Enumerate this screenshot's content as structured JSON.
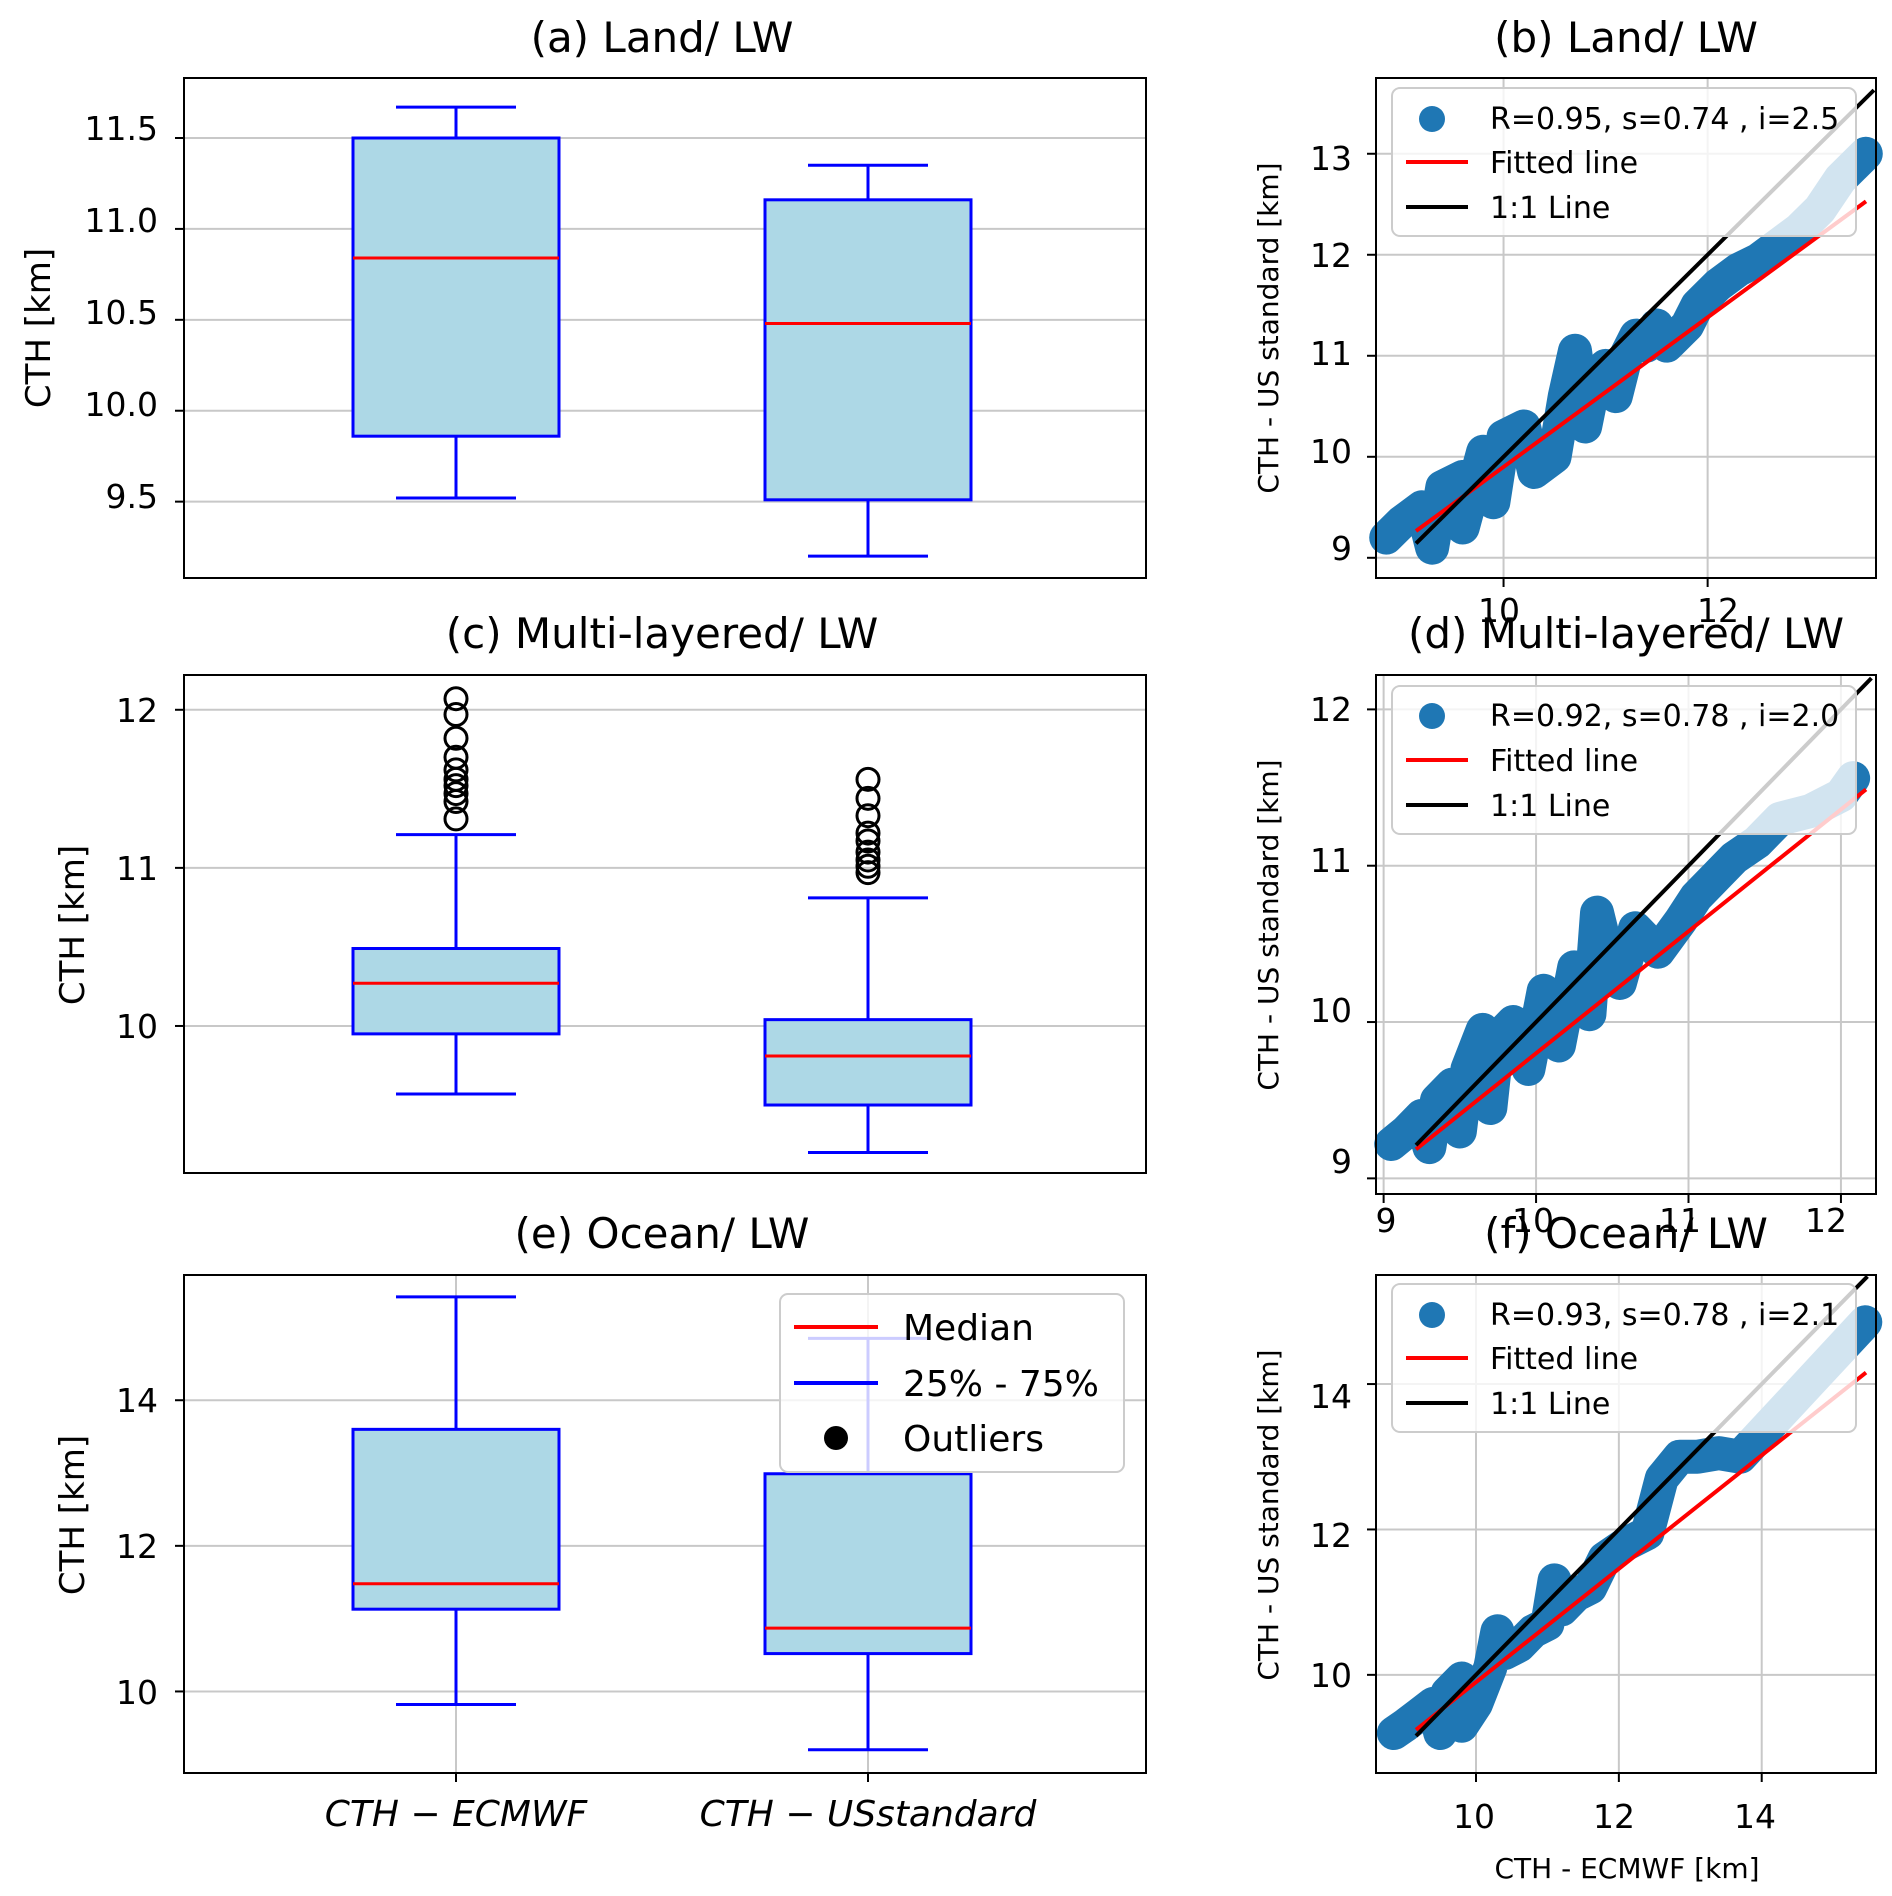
{
  "colors": {
    "box_face": "#add8e6",
    "box_edge": "#0000ff",
    "median": "#ff0000",
    "scatter": "#1f77b4",
    "fit": "#ff0000",
    "identity": "#000000",
    "grid": "#c8c8c8"
  },
  "chart_data": [
    {
      "id": "a",
      "type": "box",
      "title": "(a) Land/ LW",
      "ylabel": "CTH [km]",
      "ylim": [
        9.08,
        11.83
      ],
      "yticks": [
        9.5,
        10.0,
        10.5,
        11.0,
        11.5
      ],
      "ytick_labels": [
        "9.5",
        "10.0",
        "10.5",
        "11.0",
        "11.5"
      ],
      "categories": [
        "CTH - ECMWF",
        "CTH - USstandard"
      ],
      "boxes": [
        {
          "whislo": 9.52,
          "q1": 9.86,
          "med": 10.84,
          "q3": 11.5,
          "whishi": 11.67,
          "fliers": []
        },
        {
          "whislo": 9.2,
          "q1": 9.51,
          "med": 10.48,
          "q3": 11.16,
          "whishi": 11.35,
          "fliers": []
        }
      ]
    },
    {
      "id": "b",
      "type": "scatter",
      "title": "(b) Land/ LW",
      "ylabel": "CTH - US standard [km]",
      "xlim": [
        8.75,
        13.65
      ],
      "ylim": [
        8.8,
        13.75
      ],
      "xticks": [
        10,
        12
      ],
      "xtick_labels": [
        "10",
        "12"
      ],
      "yticks": [
        9,
        10,
        11,
        12,
        13
      ],
      "ytick_labels": [
        "9",
        "10",
        "11",
        "12",
        "13"
      ],
      "legend": [
        "R=0.95, s=0.74 , i=2.5",
        "Fitted line",
        "1:1 Line"
      ],
      "slope": 0.74,
      "intercept": 2.5,
      "points": [
        [
          8.85,
          9.2
        ],
        [
          9.0,
          9.35
        ],
        [
          9.2,
          9.5
        ],
        [
          9.4,
          9.7
        ],
        [
          9.6,
          9.8
        ],
        [
          9.8,
          10.05
        ],
        [
          9.3,
          9.1
        ],
        [
          9.6,
          9.3
        ],
        [
          9.9,
          9.55
        ],
        [
          10.0,
          10.2
        ],
        [
          10.2,
          10.3
        ],
        [
          10.3,
          9.85
        ],
        [
          10.5,
          10.0
        ],
        [
          10.6,
          10.6
        ],
        [
          10.8,
          10.3
        ],
        [
          10.9,
          10.8
        ],
        [
          11.0,
          10.9
        ],
        [
          11.1,
          10.6
        ],
        [
          11.2,
          11.0
        ],
        [
          11.4,
          11.1
        ],
        [
          11.5,
          11.3
        ],
        [
          11.6,
          11.1
        ],
        [
          11.8,
          11.3
        ],
        [
          11.9,
          11.5
        ],
        [
          12.1,
          11.7
        ],
        [
          12.3,
          11.85
        ],
        [
          12.5,
          11.95
        ],
        [
          12.7,
          12.1
        ],
        [
          12.9,
          12.25
        ],
        [
          13.1,
          12.45
        ],
        [
          13.3,
          12.75
        ],
        [
          13.55,
          13.0
        ],
        [
          10.7,
          11.05
        ],
        [
          11.3,
          11.2
        ]
      ]
    },
    {
      "id": "c",
      "type": "box",
      "title": "(c) Multi-layered/ LW",
      "ylabel": "CTH [km]",
      "ylim": [
        9.07,
        12.22
      ],
      "yticks": [
        10,
        11,
        12
      ],
      "ytick_labels": [
        "10",
        "11",
        "12"
      ],
      "categories": [
        "CTH - ECMWF",
        "CTH - USstandard"
      ],
      "boxes": [
        {
          "whislo": 9.57,
          "q1": 9.95,
          "med": 10.27,
          "q3": 10.49,
          "whishi": 11.21,
          "fliers": [
            11.31,
            11.42,
            11.47,
            11.52,
            11.56,
            11.62,
            11.7,
            11.82,
            11.97,
            12.07
          ]
        },
        {
          "whislo": 9.2,
          "q1": 9.5,
          "med": 9.81,
          "q3": 10.04,
          "whishi": 10.81,
          "fliers": [
            10.97,
            11.01,
            11.05,
            11.1,
            11.17,
            11.22,
            11.33,
            11.44,
            11.56
          ]
        }
      ]
    },
    {
      "id": "d",
      "type": "scatter",
      "title": "(d) Multi-layered/ LW",
      "ylabel": "CTH - US standard [km]",
      "xlim": [
        8.95,
        12.23
      ],
      "ylim": [
        8.9,
        12.22
      ],
      "xticks": [
        9,
        10,
        11,
        12
      ],
      "xtick_labels": [
        "9",
        "10",
        "11",
        "12"
      ],
      "yticks": [
        9,
        10,
        11,
        12
      ],
      "ytick_labels": [
        "9",
        "10",
        "11",
        "12"
      ],
      "legend": [
        "R=0.92, s=0.78 , i=2.0",
        "Fitted line",
        "1:1 Line"
      ],
      "slope": 0.78,
      "intercept": 2.0,
      "points": [
        [
          9.05,
          9.22
        ],
        [
          9.15,
          9.3
        ],
        [
          9.25,
          9.4
        ],
        [
          9.35,
          9.5
        ],
        [
          9.45,
          9.6
        ],
        [
          9.55,
          9.7
        ],
        [
          9.3,
          9.2
        ],
        [
          9.5,
          9.3
        ],
        [
          9.7,
          9.45
        ],
        [
          9.75,
          9.9
        ],
        [
          9.85,
          10.0
        ],
        [
          9.95,
          9.7
        ],
        [
          10.05,
          10.2
        ],
        [
          10.15,
          9.85
        ],
        [
          10.25,
          10.35
        ],
        [
          10.35,
          10.05
        ],
        [
          10.45,
          10.5
        ],
        [
          10.55,
          10.25
        ],
        [
          10.65,
          10.6
        ],
        [
          10.8,
          10.45
        ],
        [
          10.95,
          10.65
        ],
        [
          11.05,
          10.8
        ],
        [
          11.15,
          10.9
        ],
        [
          11.3,
          11.05
        ],
        [
          11.45,
          11.15
        ],
        [
          11.6,
          11.3
        ],
        [
          11.8,
          11.35
        ],
        [
          12.0,
          11.45
        ],
        [
          12.08,
          11.56
        ],
        [
          10.4,
          10.7
        ],
        [
          9.65,
          9.95
        ]
      ]
    },
    {
      "id": "e",
      "type": "box",
      "title": "(e) Ocean/ LW",
      "ylabel": "CTH [km]",
      "ylim": [
        8.88,
        15.72
      ],
      "yticks": [
        10,
        12,
        14
      ],
      "ytick_labels": [
        "10",
        "12",
        "14"
      ],
      "categories": [
        "CTH - ECMWF",
        "CTH - USstandard"
      ],
      "category_labels": [
        "CTH − ECMWF",
        "CTH − USstandard"
      ],
      "legend": [
        "Median",
        "25% - 75%",
        "Outliers"
      ],
      "boxes": [
        {
          "whislo": 9.82,
          "q1": 11.13,
          "med": 11.48,
          "q3": 13.6,
          "whishi": 15.42,
          "fliers": []
        },
        {
          "whislo": 9.2,
          "q1": 10.52,
          "med": 10.87,
          "q3": 12.99,
          "whishi": 14.85,
          "fliers": []
        }
      ]
    },
    {
      "id": "f",
      "type": "scatter",
      "title": "(f) Ocean/ LW",
      "xlabel": "CTH - ECMWF [km]",
      "ylabel": "CTH - US standard [km]",
      "xlim": [
        8.6,
        15.6
      ],
      "ylim": [
        8.65,
        15.5
      ],
      "xticks": [
        10,
        12,
        14
      ],
      "xtick_labels": [
        "10",
        "12",
        "14"
      ],
      "yticks": [
        10,
        12,
        14
      ],
      "ytick_labels": [
        "10",
        "12",
        "14"
      ],
      "legend": [
        "R=0.93, s=0.78 , i=2.1",
        "Fitted line",
        "1:1 Line"
      ],
      "slope": 0.78,
      "intercept": 2.1,
      "points": [
        [
          8.85,
          9.2
        ],
        [
          9.0,
          9.3
        ],
        [
          9.2,
          9.45
        ],
        [
          9.4,
          9.6
        ],
        [
          9.6,
          9.75
        ],
        [
          9.8,
          9.95
        ],
        [
          9.5,
          9.2
        ],
        [
          9.8,
          9.3
        ],
        [
          10.0,
          9.6
        ],
        [
          10.2,
          10.1
        ],
        [
          10.4,
          10.3
        ],
        [
          10.6,
          10.4
        ],
        [
          10.8,
          10.6
        ],
        [
          11.0,
          10.7
        ],
        [
          11.2,
          10.9
        ],
        [
          11.4,
          11.1
        ],
        [
          11.6,
          11.2
        ],
        [
          11.8,
          11.6
        ],
        [
          12.1,
          11.8
        ],
        [
          12.4,
          11.95
        ],
        [
          12.6,
          12.7
        ],
        [
          12.85,
          13.0
        ],
        [
          13.1,
          13.0
        ],
        [
          13.4,
          13.05
        ],
        [
          13.7,
          13.0
        ],
        [
          15.45,
          14.85
        ],
        [
          10.3,
          10.6
        ],
        [
          11.1,
          11.3
        ]
      ]
    }
  ]
}
